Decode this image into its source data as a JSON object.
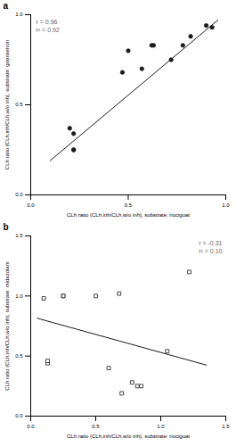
{
  "chart_data": [
    {
      "type": "scatter",
      "title": "a",
      "x_label": "CLh ratio (CLh,inh/CLh,w/o inh), substrate: riociguat",
      "y_label": "CLh ratio (CLh,inh/CLh,w/o inh), substrate: granisetron",
      "xlim": [
        0.0,
        1.0
      ],
      "ylim": [
        0.0,
        1.0
      ],
      "xticks": [
        {
          "value": 0.0,
          "label": "0.0"
        },
        0.5,
        {
          "value": 1.0,
          "label": "1.0"
        }
      ],
      "yticks": [
        {
          "value": 0.0,
          "label": "0.0"
        },
        0.5,
        {
          "value": 1.0,
          "label": "1.0"
        }
      ],
      "grid": false,
      "annotation": {
        "text": "r = 0.96\nr² = 0.92",
        "color": "#666666"
      },
      "series": [
        {
          "type": "line",
          "color": "#1a1a1a",
          "x": [
            0.1,
            0.96
          ],
          "values": [
            0.1907,
            0.97072
          ]
        },
        {
          "type": "scatter",
          "color": "#1a1a1a",
          "marker": "circle",
          "x": [
            0.2,
            0.22,
            0.22,
            0.22,
            0.47,
            0.5,
            0.57,
            0.62,
            0.63,
            0.72,
            0.78,
            0.82,
            0.9,
            0.93
          ],
          "values": [
            0.37,
            0.34,
            0.25,
            0.25,
            0.68,
            0.8,
            0.7,
            0.83,
            0.83,
            0.75,
            0.83,
            0.88,
            0.94,
            0.93
          ]
        }
      ]
    },
    {
      "type": "scatter",
      "title": "b",
      "x_label": "CLh ratio (CLh,inh/CLh,w/o inh), substrate: riociguat",
      "y_label": "CLh ratio (CLh,inh/CLh,w/o inh), substrate: midazolam",
      "xlim": [
        0.0,
        1.5
      ],
      "ylim": [
        0.0,
        1.5
      ],
      "xticks": [
        {
          "value": 0.0,
          "label": "0.0"
        },
        0.5,
        {
          "value": 1.0,
          "label": "1.0"
        },
        1.5
      ],
      "yticks": [
        {
          "value": 0.0,
          "label": "0.0"
        },
        0.5,
        {
          "value": 1.0,
          "label": "1.0"
        },
        1.5
      ],
      "grid": false,
      "annotation": {
        "text": "r = -0.31\nr² = 0.10",
        "color": "#666666"
      },
      "series": [
        {
          "type": "line",
          "color": "#1a1a1a",
          "x": [
            0.05,
            1.35
          ],
          "values": [
            0.815,
            0.425
          ]
        },
        {
          "type": "scatter",
          "color": "#1a1a1a",
          "marker": "square",
          "x": [
            0.1,
            0.13,
            0.13,
            0.25,
            0.25,
            0.5,
            0.6,
            0.68,
            0.7,
            0.78,
            0.82,
            0.85,
            1.05,
            1.22
          ],
          "values": [
            0.98,
            0.44,
            0.46,
            1.0,
            1.0,
            1.0,
            0.4,
            1.02,
            0.19,
            0.28,
            0.25,
            0.25,
            0.54,
            1.2
          ]
        }
      ]
    }
  ]
}
